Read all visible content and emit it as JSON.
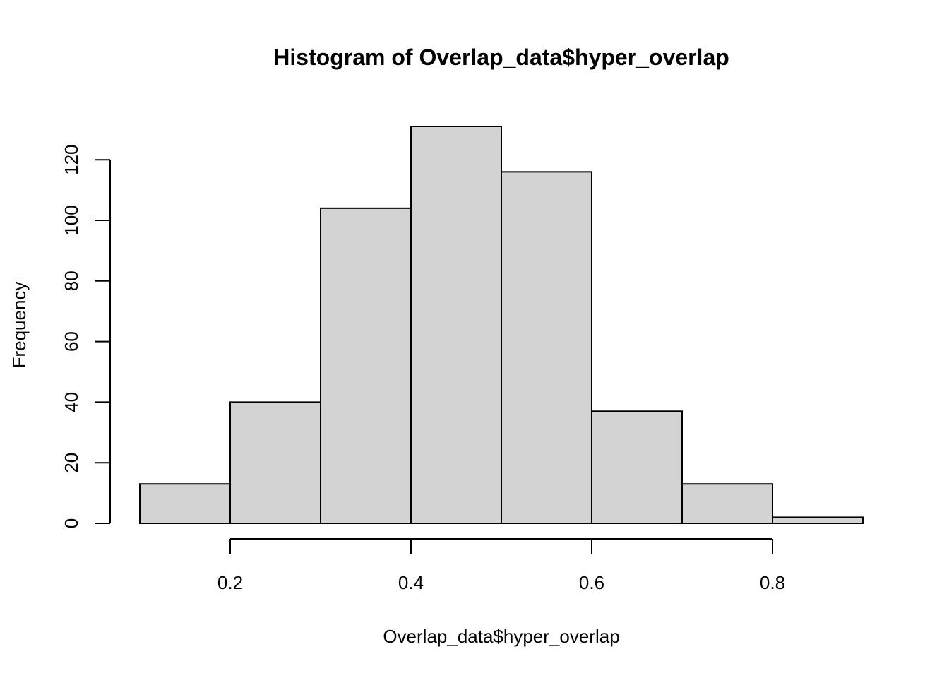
{
  "chart_data": {
    "type": "bar",
    "title": "Histogram of Overlap_data$hyper_overlap",
    "xlabel": "Overlap_data$hyper_overlap",
    "ylabel": "Frequency",
    "bins": [
      {
        "start": 0.1,
        "end": 0.2,
        "count": 13
      },
      {
        "start": 0.2,
        "end": 0.3,
        "count": 40
      },
      {
        "start": 0.3,
        "end": 0.4,
        "count": 104
      },
      {
        "start": 0.4,
        "end": 0.5,
        "count": 131
      },
      {
        "start": 0.5,
        "end": 0.6,
        "count": 116
      },
      {
        "start": 0.6,
        "end": 0.7,
        "count": 37
      },
      {
        "start": 0.7,
        "end": 0.8,
        "count": 13
      },
      {
        "start": 0.8,
        "end": 0.9,
        "count": 2
      }
    ],
    "x_ticks": [
      {
        "value": 0.2,
        "label": "0.2"
      },
      {
        "value": 0.4,
        "label": "0.4"
      },
      {
        "value": 0.6,
        "label": "0.6"
      },
      {
        "value": 0.8,
        "label": "0.8"
      }
    ],
    "y_ticks": [
      {
        "value": 0,
        "label": "0"
      },
      {
        "value": 20,
        "label": "20"
      },
      {
        "value": 40,
        "label": "40"
      },
      {
        "value": 60,
        "label": "60"
      },
      {
        "value": 80,
        "label": "80"
      },
      {
        "value": 100,
        "label": "100"
      },
      {
        "value": 120,
        "label": "120"
      }
    ],
    "xlim": [
      0.1,
      0.9
    ],
    "ylim": [
      0,
      131
    ],
    "bar_color": "#d3d3d3",
    "grid": false,
    "legend": "none"
  }
}
